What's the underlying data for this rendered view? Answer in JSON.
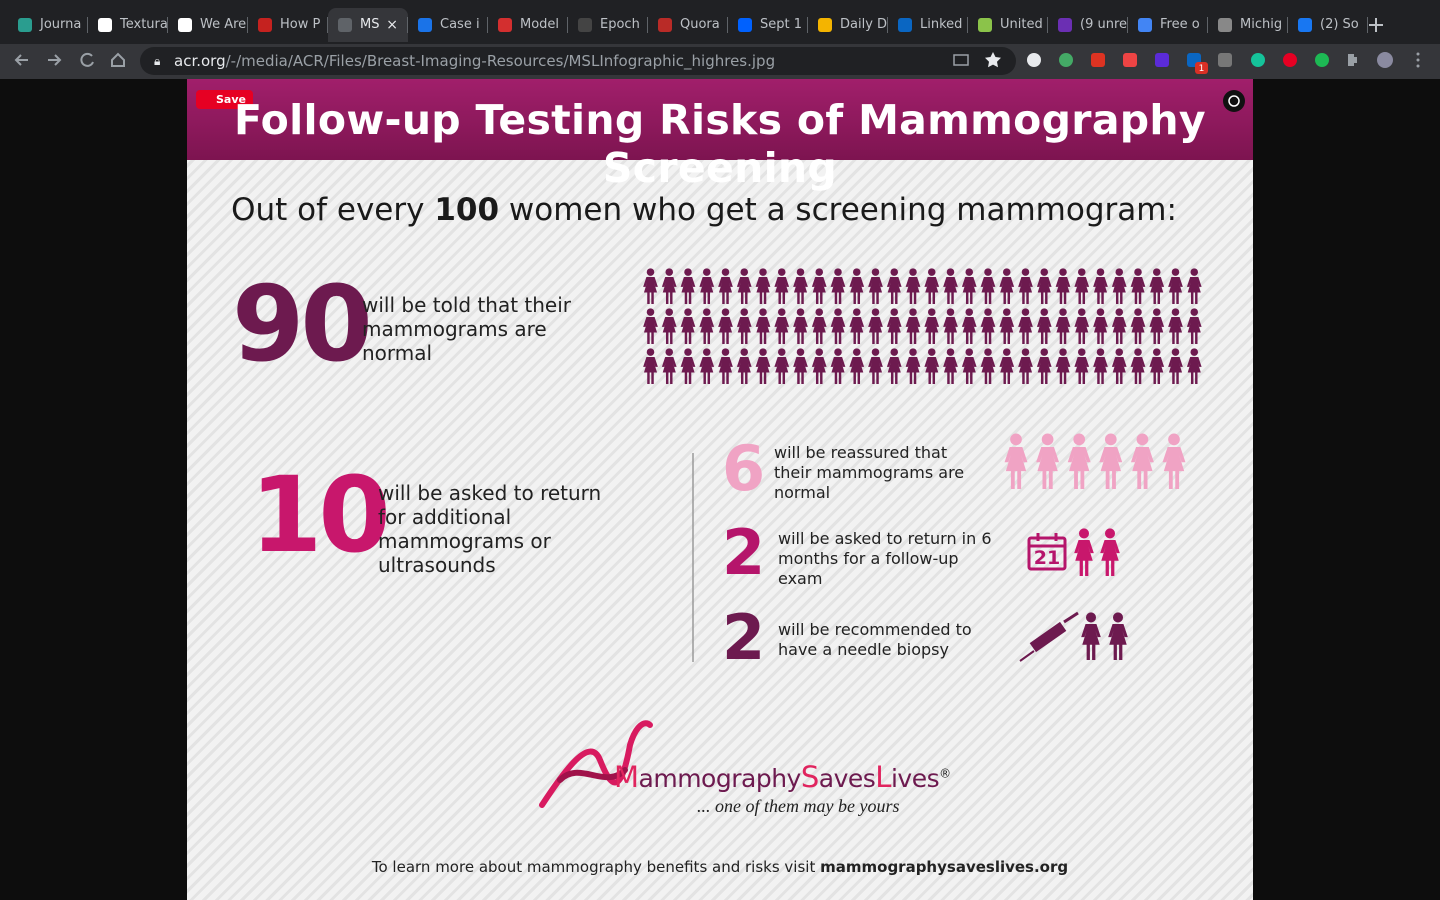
{
  "browser": {
    "tabs": [
      "Journa",
      "Textura",
      "We Are",
      "How P",
      "MS",
      "Case i",
      "Model",
      "Epoch",
      "Quora",
      "Sept 1",
      "Daily D",
      "Linked",
      "United",
      "(9 unre",
      "Free o",
      "Michig",
      "(2) So"
    ],
    "url": {
      "domain": "acr.org",
      "path": "/-/media/ACR/Files/Breast-Imaging-Resources/MSLInfographic_highres.jpg"
    },
    "extension_badge": "1"
  },
  "infographic": {
    "save_button": "Save",
    "title": "Follow-up Testing Risks of Mammography Screening",
    "intro": {
      "before": "Out of every",
      "number": 100,
      "after": "women who get a screening mammogram:"
    },
    "normal": {
      "count": 90,
      "text": "will be told that their mammograms are normal"
    },
    "recalled": {
      "count": 10,
      "text": "will be asked to return for additional mammograms or ultrasounds"
    },
    "outcomes": [
      {
        "count": 6,
        "text": "will be reassured that their mammograms are normal"
      },
      {
        "count": 2,
        "text": "will be asked to return in 6 months for a follow-up exam"
      },
      {
        "count": 2,
        "text": "will be recommended to have a needle biopsy"
      }
    ],
    "calendar_day": 21,
    "logo": {
      "mammography": "Mammography",
      "saves": "Saves",
      "lives": "Lives",
      "registered": "®",
      "tagline": "... one of them may be yours"
    },
    "footer": {
      "text": "To learn more about mammography benefits and risks visit",
      "link": "mammographysaveslives.org"
    }
  }
}
